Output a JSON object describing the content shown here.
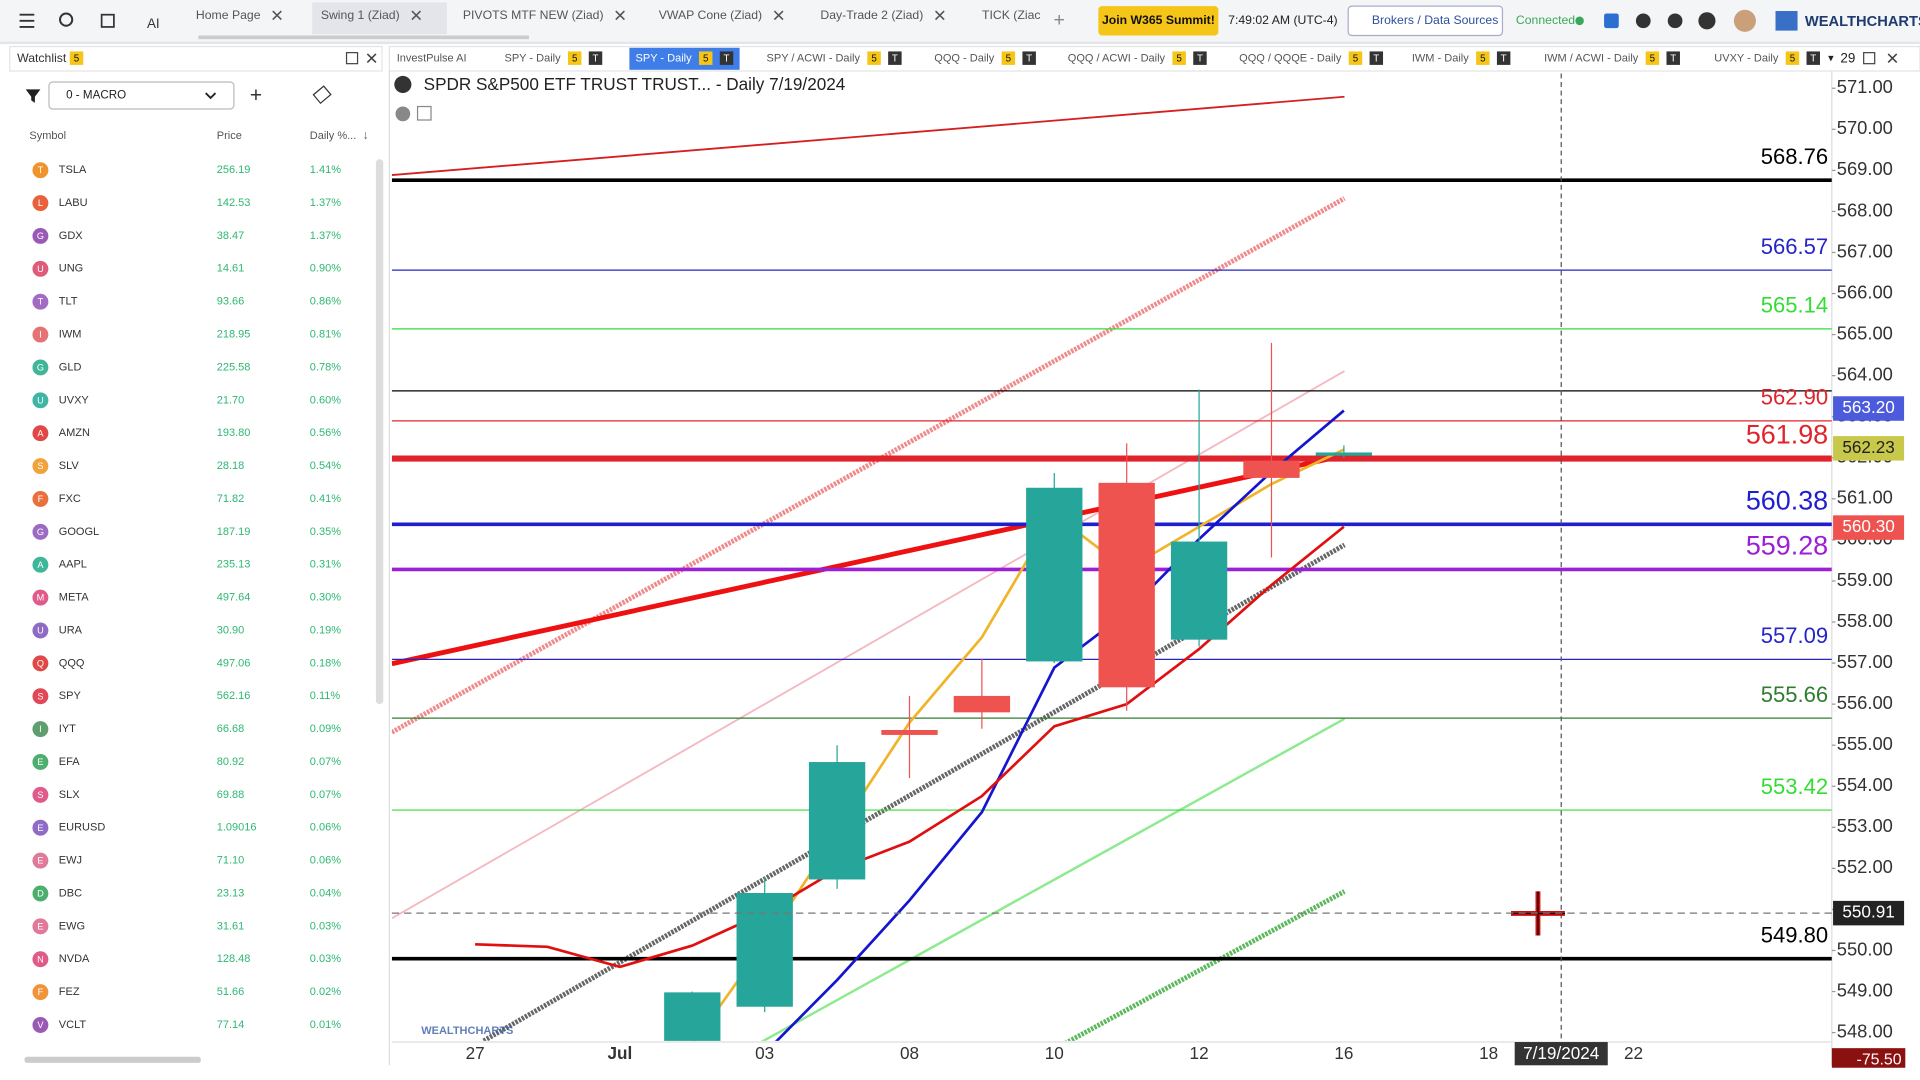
{
  "topbar": {
    "ai": "AI",
    "tabs": [
      "Home Page",
      "Swing 1 (Ziad)",
      "PIVOTS MTF NEW (Ziad)",
      "VWAP Cone (Ziad)",
      "Day-Trade 2 (Ziad)",
      "TICK (Ziac"
    ],
    "summit": "Join W365 Summit!",
    "time": "7:49:02 AM (UTC-4)",
    "brokers": "Brokers / Data Sources",
    "status": "Connected",
    "brand": "WEALTHCHARTS"
  },
  "watchlist": {
    "title": "Watchlist",
    "badge": "5",
    "list": "0 - MACRO",
    "columns": [
      "Symbol",
      "Price",
      "Daily %..."
    ],
    "rows": [
      {
        "badge": "T",
        "color": "#f0932b",
        "symbol": "TSLA",
        "price": "256.19",
        "change": "1.41%"
      },
      {
        "badge": "L",
        "color": "#e8603c",
        "symbol": "LABU",
        "price": "142.53",
        "change": "1.37%"
      },
      {
        "badge": "G",
        "color": "#9b59b6",
        "symbol": "GDX",
        "price": "38.47",
        "change": "1.37%"
      },
      {
        "badge": "U",
        "color": "#e05a7a",
        "symbol": "UNG",
        "price": "14.61",
        "change": "0.90%"
      },
      {
        "badge": "T",
        "color": "#a26bc4",
        "symbol": "TLT",
        "price": "93.66",
        "change": "0.86%"
      },
      {
        "badge": "I",
        "color": "#e67373",
        "symbol": "IWM",
        "price": "218.95",
        "change": "0.81%"
      },
      {
        "badge": "G",
        "color": "#3fb59a",
        "symbol": "GLD",
        "price": "225.58",
        "change": "0.78%"
      },
      {
        "badge": "U",
        "color": "#3fb5a5",
        "symbol": "UVXY",
        "price": "21.70",
        "change": "0.60%"
      },
      {
        "badge": "A",
        "color": "#e04848",
        "symbol": "AMZN",
        "price": "193.80",
        "change": "0.56%"
      },
      {
        "badge": "S",
        "color": "#f0a23b",
        "symbol": "SLV",
        "price": "28.18",
        "change": "0.54%"
      },
      {
        "badge": "F",
        "color": "#e8703c",
        "symbol": "FXC",
        "price": "71.82",
        "change": "0.41%"
      },
      {
        "badge": "G",
        "color": "#9b6bc4",
        "symbol": "GOOGL",
        "price": "187.19",
        "change": "0.35%"
      },
      {
        "badge": "A",
        "color": "#3fb59a",
        "symbol": "AAPL",
        "price": "235.13",
        "change": "0.31%"
      },
      {
        "badge": "M",
        "color": "#e05a8a",
        "symbol": "META",
        "price": "497.64",
        "change": "0.30%"
      },
      {
        "badge": "U",
        "color": "#8e6bc4",
        "symbol": "URA",
        "price": "30.90",
        "change": "0.19%"
      },
      {
        "badge": "Q",
        "color": "#e04848",
        "symbol": "QQQ",
        "price": "497.06",
        "change": "0.18%"
      },
      {
        "badge": "S",
        "color": "#e04858",
        "symbol": "SPY",
        "price": "562.16",
        "change": "0.11%"
      },
      {
        "badge": "I",
        "color": "#5f9e6e",
        "symbol": "IYT",
        "price": "66.68",
        "change": "0.09%"
      },
      {
        "badge": "E",
        "color": "#4caf6e",
        "symbol": "EFA",
        "price": "80.92",
        "change": "0.07%"
      },
      {
        "badge": "S",
        "color": "#e05a8a",
        "symbol": "SLX",
        "price": "69.88",
        "change": "0.07%"
      },
      {
        "badge": "E",
        "color": "#8e6bc4",
        "symbol": "EURUSD",
        "price": "1.09016",
        "change": "0.06%"
      },
      {
        "badge": "E",
        "color": "#e07a9a",
        "symbol": "EWJ",
        "price": "71.10",
        "change": "0.06%"
      },
      {
        "badge": "D",
        "color": "#4caf6e",
        "symbol": "DBC",
        "price": "23.13",
        "change": "0.04%"
      },
      {
        "badge": "E",
        "color": "#e07a9a",
        "symbol": "EWG",
        "price": "31.61",
        "change": "0.03%"
      },
      {
        "badge": "N",
        "color": "#e05a8a",
        "symbol": "NVDA",
        "price": "128.48",
        "change": "0.03%"
      },
      {
        "badge": "F",
        "color": "#f0933b",
        "symbol": "FEZ",
        "price": "51.66",
        "change": "0.02%"
      },
      {
        "badge": "V",
        "color": "#9b59b6",
        "symbol": "VCLT",
        "price": "77.14",
        "change": "0.01%"
      }
    ]
  },
  "chart_tabs": {
    "items": [
      {
        "label": "InvestPulse AI",
        "tags": []
      },
      {
        "label": "SPY - Daily",
        "tags": [
          "5",
          "T"
        ]
      },
      {
        "label": "SPY - Daily",
        "tags": [
          "5",
          "T"
        ]
      },
      {
        "label": "SPY / ACWI - Daily",
        "tags": [
          "5",
          "T"
        ]
      },
      {
        "label": "QQQ - Daily",
        "tags": [
          "5",
          "T"
        ]
      },
      {
        "label": "QQQ / ACWI - Daily",
        "tags": [
          "5",
          "T"
        ]
      },
      {
        "label": "QQQ / QQQE - Daily",
        "tags": [
          "5",
          "T"
        ]
      },
      {
        "label": "IWM - Daily",
        "tags": [
          "5",
          "T"
        ]
      },
      {
        "label": "IWM / ACWI - Daily",
        "tags": [
          "5",
          "T"
        ]
      },
      {
        "label": "UVXY - Daily",
        "tags": [
          "5",
          "T"
        ]
      }
    ],
    "count": "29"
  },
  "chart": {
    "type": "candlestick",
    "title": "SPDR S&P500 ETF TRUST TRUST... - Daily 7/19/2024",
    "watermark": "WEALTHCHARTS",
    "categories": [
      "27",
      null,
      "Jul",
      null,
      "03",
      null,
      "08",
      null,
      "10",
      null,
      "12",
      null,
      "16",
      null,
      "18",
      null,
      "22"
    ],
    "candles": {
      "open": [
        null,
        null,
        null,
        547.5,
        548.63,
        551.73,
        555.37,
        556.2,
        557.04,
        561.39,
        557.57,
        561.93,
        562.05,
        null,
        null,
        null,
        null
      ],
      "high": [
        null,
        null,
        null,
        549.0,
        551.79,
        555.0,
        556.2,
        557.1,
        561.63,
        562.35,
        563.66,
        564.8,
        562.3,
        null,
        null,
        null,
        null
      ],
      "low": [
        null,
        null,
        null,
        547.5,
        548.5,
        551.5,
        554.2,
        555.4,
        557.0,
        555.84,
        557.4,
        559.57,
        562.0,
        null,
        null,
        null,
        null
      ],
      "close": [
        null,
        null,
        null,
        548.98,
        551.4,
        554.59,
        555.25,
        555.8,
        561.27,
        556.41,
        559.96,
        561.51,
        562.13,
        null,
        null,
        null,
        null
      ]
    },
    "up_color": "#26a69a",
    "down_color": "#ef5350",
    "series": [
      {
        "color": "#f0b429",
        "values": [
          null,
          null,
          null,
          547.7,
          550.18,
          552.86,
          555.55,
          557.63,
          560.62,
          559.28,
          560.32,
          561.36,
          562.2,
          null,
          null,
          null,
          null
        ]
      },
      {
        "color": "#1515d0",
        "values": [
          null,
          null,
          null,
          null,
          547.5,
          549.28,
          551.22,
          553.37,
          556.89,
          558.23,
          560.02,
          561.66,
          563.15,
          null,
          null,
          null,
          null
        ]
      },
      {
        "color": "#e01010",
        "values": [
          550.15,
          550.09,
          549.6,
          550.12,
          550.92,
          551.97,
          552.65,
          553.76,
          555.46,
          556.0,
          557.34,
          558.9,
          560.32,
          null,
          null,
          null,
          null
        ]
      }
    ],
    "ylim": [
      547.8,
      571.36
    ],
    "yticks": [
      {
        "value": 571,
        "label": "571.00"
      },
      {
        "value": 570,
        "label": "570.00"
      },
      {
        "value": 569,
        "label": "569.00"
      },
      {
        "value": 568,
        "label": "568.00"
      },
      {
        "value": 567,
        "label": "567.00"
      },
      {
        "value": 566,
        "label": "566.00"
      },
      {
        "value": 565,
        "label": "565.00"
      },
      {
        "value": 564,
        "label": "564.00"
      },
      {
        "value": 563,
        "label": "563.00"
      },
      {
        "value": 562,
        "label": "562.00"
      },
      {
        "value": 561,
        "label": "561.00"
      },
      {
        "value": 560,
        "label": "560.00"
      },
      {
        "value": 559,
        "label": "559.00"
      },
      {
        "value": 558,
        "label": "558.00"
      },
      {
        "value": 557,
        "label": "557.00"
      },
      {
        "value": 556,
        "label": "556.00"
      },
      {
        "value": 555,
        "label": "555.00"
      },
      {
        "value": 554,
        "label": "554.00"
      },
      {
        "value": 553,
        "label": "553.00"
      },
      {
        "value": 552,
        "label": "552.00"
      },
      {
        "value": 551,
        "label": "551.00"
      },
      {
        "value": 550,
        "label": "550.00"
      },
      {
        "value": 549,
        "label": "549.00"
      },
      {
        "value": 548,
        "label": "548.00"
      }
    ],
    "levels": [
      {
        "value": 568.76,
        "color": "#000000",
        "width": 3,
        "size": 18
      },
      {
        "value": 566.57,
        "color": "#2525c8",
        "width": 1,
        "size": 18
      },
      {
        "value": 565.14,
        "color": "#33dd33",
        "width": 1,
        "size": 18
      },
      {
        "value": 563.63,
        "color": "#000000",
        "width": 1
      },
      {
        "value": 562.9,
        "label": "562.90",
        "color": "#e0242c",
        "width": 1,
        "size": 18
      },
      {
        "value": 561.98,
        "color": "#e0242c",
        "width": 5,
        "size": 22
      },
      {
        "value": 560.38,
        "color": "#1f1fd0",
        "width": 3,
        "size": 22
      },
      {
        "value": 559.28,
        "color": "#9b1fd6",
        "width": 3,
        "size": 22
      },
      {
        "value": 557.09,
        "color": "#2525c8",
        "width": 1,
        "size": 18
      },
      {
        "value": 555.66,
        "color": "#2f7d2f",
        "width": 1,
        "size": 18
      },
      {
        "value": 553.42,
        "color": "#33dd33",
        "width": 1,
        "size": 18
      },
      {
        "value": 549.8,
        "label": "549.80",
        "color": "#000000",
        "width": 3,
        "size": 18
      }
    ],
    "price_badges": [
      {
        "value": 563.2,
        "label": "563.20",
        "color": "#4b5bdc"
      },
      {
        "value": 562.23,
        "color": "#c8c84a"
      },
      {
        "value": 560.3,
        "label": "560.30",
        "color": "#ef5350"
      }
    ],
    "crosshair": {
      "date": "7/19/2024",
      "price": 550.91
    },
    "footer_badge": "-75.50"
  }
}
